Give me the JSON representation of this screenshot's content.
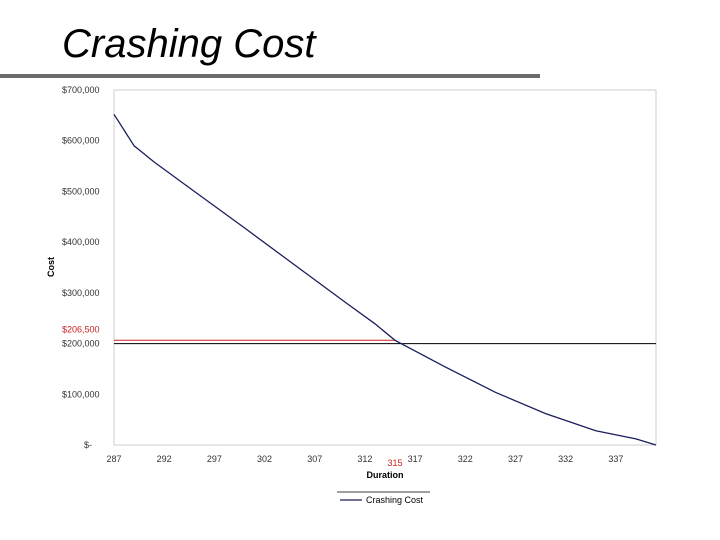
{
  "slide": {
    "title": "Crashing Cost"
  },
  "chart_data": {
    "type": "line",
    "xlabel": "Duration",
    "ylabel": "Cost",
    "x_ticks": [
      "287",
      "292",
      "297",
      "302",
      "307",
      "312",
      "317",
      "322",
      "327",
      "332",
      "337"
    ],
    "y_ticks": [
      "$-",
      "$100,000",
      "$200,000",
      "$300,000",
      "$400,000",
      "$500,000",
      "$600,000",
      "$700,000"
    ],
    "xlim": [
      287,
      341
    ],
    "ylim": [
      0,
      700000
    ],
    "series": [
      {
        "name": "Crashing Cost",
        "color": "#1a1f5c",
        "x": [
          287,
          289,
          291,
          295,
          300,
          305,
          310,
          313,
          315,
          320,
          325,
          330,
          335,
          339,
          341
        ],
        "y": [
          652000,
          590000,
          558000,
          500000,
          428000,
          355000,
          282000,
          239000,
          206500,
          154000,
          104000,
          62000,
          28000,
          12000,
          0
        ]
      }
    ],
    "reference_line": {
      "y": 200000,
      "color": "#000000"
    },
    "annotations": [
      {
        "label": "$206,500",
        "color": "#cc2222"
      },
      {
        "label": "315",
        "color": "#cc2222"
      }
    ],
    "grid": false,
    "legend": {
      "position": "bottom",
      "entries": [
        "Crashing Cost"
      ]
    }
  }
}
